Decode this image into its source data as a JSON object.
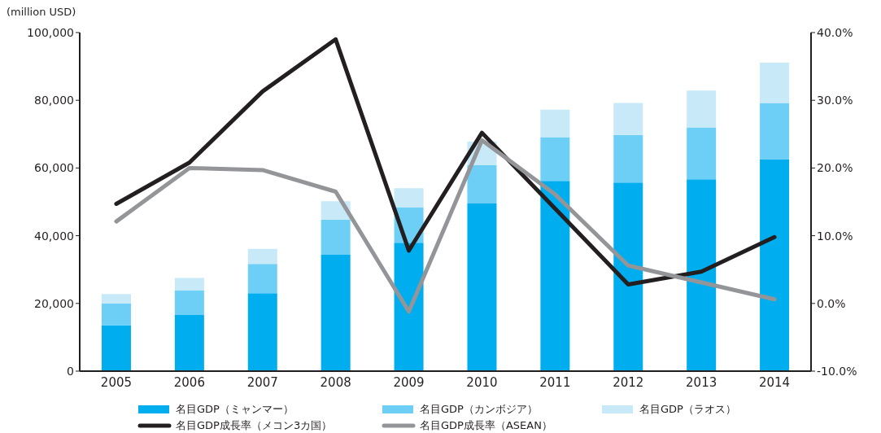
{
  "chart_data": {
    "type": "bar",
    "stacked": true,
    "ylabel": "(million USD)",
    "categories": [
      "2005",
      "2006",
      "2007",
      "2008",
      "2009",
      "2010",
      "2011",
      "2012",
      "2013",
      "2014"
    ],
    "series": [
      {
        "name": "名目GDP（ミャンマー）",
        "color": "#00aeef",
        "values": [
          13600,
          16600,
          23000,
          34400,
          37900,
          49500,
          56200,
          55700,
          56700,
          62600
        ]
      },
      {
        "name": "名目GDP（カンボジア）",
        "color": "#6dcff6",
        "values": [
          6400,
          7200,
          8700,
          10400,
          10400,
          11400,
          12900,
          14100,
          15300,
          16600
        ]
      },
      {
        "name": "名目GDP（ラオス）",
        "color": "#c7e9f8",
        "values": [
          2800,
          3700,
          4400,
          5400,
          5700,
          6900,
          8100,
          9400,
          10900,
          11900
        ]
      },
      {
        "name": "名目GDP成長率（メコン3カ国）",
        "type": "line",
        "axis": "y2",
        "color": "#231f20",
        "values": [
          14.7,
          20.8,
          31.3,
          39.0,
          7.8,
          25.2,
          14.0,
          2.8,
          4.7,
          9.8
        ]
      },
      {
        "name": "名目GDP成長率（ASEAN）",
        "type": "line",
        "axis": "y2",
        "color": "#939598",
        "values": [
          12.1,
          20.0,
          19.7,
          16.5,
          -1.2,
          24.1,
          16.1,
          5.6,
          3.1,
          0.6
        ]
      }
    ],
    "ylim": [
      0,
      100000
    ],
    "yticks": [
      0,
      {
        "value": 20000,
        "label": "20,000"
      },
      {
        "value": 40000,
        "label": "40,000"
      },
      {
        "value": 60000,
        "label": "60,000"
      },
      {
        "value": 80000,
        "label": "80,000"
      },
      {
        "value": 100000,
        "label": "100,000"
      }
    ],
    "y2lim": [
      -10,
      40
    ],
    "y2ticks": [
      {
        "value": -10,
        "label": "-10.0%"
      },
      {
        "value": 0,
        "label": "0.0%"
      },
      {
        "value": 10,
        "label": "10.0%"
      },
      {
        "value": 20,
        "label": "20.0%"
      },
      {
        "value": 30,
        "label": "30.0%"
      },
      {
        "value": 40,
        "label": "40.0%"
      }
    ],
    "grid": false,
    "legend": "bottom",
    "marker": "none",
    "line_style": "solid"
  }
}
